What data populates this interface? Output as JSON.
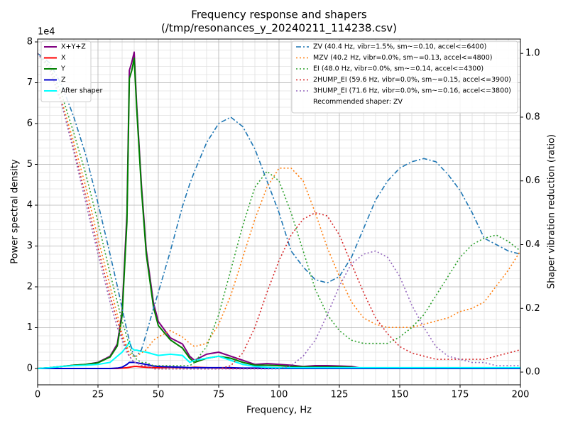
{
  "chart_data": {
    "type": "line",
    "title": "Frequency response and shapers",
    "subtitle": "(/tmp/resonances_y_20240211_114238.csv)",
    "x_label": "Frequency, Hz",
    "y_label": "Power spectral density",
    "y_offset_label": "1e4",
    "y2_label": "Shaper vibration reduction (ratio)",
    "x": [
      0,
      5,
      10,
      15,
      20,
      25,
      30,
      33,
      35,
      37,
      38,
      39,
      40,
      41,
      43,
      45,
      48,
      50,
      55,
      60,
      63,
      65,
      70,
      75,
      80,
      85,
      90,
      95,
      100,
      105,
      110,
      115,
      120,
      125,
      130,
      135,
      140,
      145,
      150,
      155,
      160,
      165,
      170,
      175,
      180,
      185,
      190,
      195,
      200
    ],
    "xlim": [
      0,
      200
    ],
    "xticks": [
      0,
      25,
      50,
      75,
      100,
      125,
      150,
      175,
      200
    ],
    "ylim": [
      -0.4,
      8.07
    ],
    "yticks": [
      0,
      1,
      2,
      3,
      4,
      5,
      6,
      7,
      8
    ],
    "y2lim": [
      -0.04,
      1.045
    ],
    "y2ticks": [
      {
        "value": 0,
        "label": "0.0"
      },
      0.2,
      0.4,
      0.6,
      0.8,
      {
        "value": 1,
        "label": "1.0"
      }
    ],
    "grid": true,
    "minor_grid": true,
    "legend": "upper left",
    "legend2": "upper right",
    "recommendation": "Recommended shaper: ZV",
    "series": [
      {
        "name": "X+Y+Z",
        "color": "#800080",
        "width": 2,
        "values": [
          0,
          0.02,
          0.05,
          0.08,
          0.1,
          0.15,
          0.3,
          0.6,
          1.4,
          3.8,
          7.3,
          7.5,
          7.75,
          6.5,
          4.5,
          2.9,
          1.6,
          1.15,
          0.75,
          0.6,
          0.3,
          0.2,
          0.35,
          0.4,
          0.3,
          0.2,
          0.1,
          0.12,
          0.1,
          0.08,
          0.05,
          0.07,
          0.07,
          0.06,
          0.05,
          0,
          0,
          0,
          0,
          0,
          0,
          0,
          0,
          0,
          0,
          0,
          0,
          0,
          0
        ]
      },
      {
        "name": "X",
        "color": "#ff0000",
        "width": 2,
        "values": [
          0,
          0,
          0,
          0,
          0,
          0,
          0,
          0,
          0.01,
          0.02,
          0.03,
          0.04,
          0.05,
          0.05,
          0.04,
          0.03,
          0.02,
          0.02,
          0.03,
          0.02,
          0.02,
          0.03,
          0.02,
          0.01,
          0,
          0,
          0,
          0,
          0,
          0,
          0,
          0,
          0,
          0,
          0,
          0,
          0,
          0,
          0,
          0,
          0,
          0,
          0,
          0,
          0,
          0,
          0,
          0,
          0
        ]
      },
      {
        "name": "Y",
        "color": "#008000",
        "width": 2,
        "values": [
          0,
          0.02,
          0.05,
          0.08,
          0.1,
          0.14,
          0.28,
          0.55,
          1.3,
          3.6,
          7.1,
          7.3,
          7.6,
          6.4,
          4.4,
          2.8,
          1.5,
          1.05,
          0.7,
          0.5,
          0.25,
          0.15,
          0.25,
          0.3,
          0.25,
          0.15,
          0.08,
          0.08,
          0.07,
          0.05,
          0.04,
          0.04,
          0.04,
          0.04,
          0.03,
          0,
          0,
          0,
          0,
          0,
          0,
          0,
          0,
          0,
          0,
          0,
          0,
          0,
          0
        ]
      },
      {
        "name": "Z",
        "color": "#0000cd",
        "width": 2,
        "values": [
          0,
          0,
          0,
          0,
          0,
          0,
          0,
          0.01,
          0.03,
          0.1,
          0.15,
          0.15,
          0.15,
          0.14,
          0.12,
          0.1,
          0.06,
          0.05,
          0.04,
          0.03,
          0.02,
          0.02,
          0.02,
          0.02,
          0.02,
          0.01,
          0.01,
          0,
          0,
          0,
          0,
          0,
          0,
          0,
          0,
          0,
          0,
          0,
          0,
          0,
          0,
          0,
          0,
          0,
          0,
          0,
          0,
          0,
          0
        ]
      },
      {
        "name": "After shaper",
        "color": "#00ffff",
        "width": 2,
        "values": [
          0,
          0.02,
          0.05,
          0.07,
          0.08,
          0.1,
          0.15,
          0.3,
          0.4,
          0.55,
          0.65,
          0.5,
          0.45,
          0.45,
          0.42,
          0.4,
          0.35,
          0.32,
          0.35,
          0.32,
          0.15,
          0.2,
          0.25,
          0.3,
          0.2,
          0.1,
          0.05,
          0.03,
          0.02,
          0.02,
          0.02,
          0.02,
          0.02,
          0.02,
          0.02,
          0.02,
          0.02,
          0.02,
          0.02,
          0.02,
          0.02,
          0.02,
          0.02,
          0.02,
          0.02,
          0.02,
          0.02,
          0.02,
          0.02
        ]
      },
      {
        "name": "ZV (40.4 Hz, vibr=1.5%, sm~=0.10, accel<=6400)",
        "axis": "y2",
        "color": "#1f77b4",
        "dash": "dashdot",
        "width": 1.6,
        "values": [
          1.0,
          0.97,
          0.9,
          0.8,
          0.68,
          0.53,
          0.37,
          0.27,
          0.2,
          0.13,
          0.1,
          0.07,
          0.05,
          0.05,
          0.07,
          0.12,
          0.2,
          0.25,
          0.38,
          0.52,
          0.59,
          0.63,
          0.72,
          0.78,
          0.8,
          0.77,
          0.7,
          0.6,
          0.5,
          0.38,
          0.33,
          0.29,
          0.28,
          0.3,
          0.36,
          0.45,
          0.54,
          0.6,
          0.64,
          0.66,
          0.67,
          0.66,
          0.62,
          0.57,
          0.5,
          0.42,
          0.4,
          0.38,
          0.37
        ]
      },
      {
        "name": "MZV (40.2 Hz, vibr=0.0%, sm~=0.13, accel<=4800)",
        "axis": "y2",
        "color": "#ff7f0e",
        "dash": "dotted",
        "width": 1.6,
        "values": [
          1.0,
          0.95,
          0.85,
          0.72,
          0.58,
          0.42,
          0.27,
          0.18,
          0.12,
          0.08,
          0.06,
          0.05,
          0.05,
          0.05,
          0.06,
          0.07,
          0.1,
          0.11,
          0.13,
          0.11,
          0.09,
          0.08,
          0.09,
          0.15,
          0.24,
          0.36,
          0.48,
          0.58,
          0.64,
          0.64,
          0.6,
          0.5,
          0.39,
          0.3,
          0.22,
          0.17,
          0.15,
          0.14,
          0.14,
          0.14,
          0.15,
          0.16,
          0.17,
          0.19,
          0.2,
          0.22,
          0.27,
          0.32,
          0.38
        ]
      },
      {
        "name": "EI (48.0 Hz, vibr=0.0%, sm~=0.14, accel<=4300)",
        "axis": "y2",
        "color": "#2ca02c",
        "dash": "dotted",
        "width": 1.6,
        "values": [
          1.0,
          0.96,
          0.87,
          0.75,
          0.62,
          0.47,
          0.31,
          0.22,
          0.16,
          0.11,
          0.08,
          0.06,
          0.05,
          0.04,
          0.03,
          0.03,
          0.02,
          0.02,
          0.02,
          0.02,
          0.02,
          0.03,
          0.08,
          0.18,
          0.32,
          0.46,
          0.58,
          0.63,
          0.6,
          0.5,
          0.38,
          0.26,
          0.18,
          0.13,
          0.1,
          0.09,
          0.09,
          0.09,
          0.11,
          0.14,
          0.18,
          0.24,
          0.3,
          0.36,
          0.4,
          0.42,
          0.43,
          0.41,
          0.38
        ]
      },
      {
        "name": "2HUMP_EI (59.6 Hz, vibr=0.0%, sm~=0.15, accel<=3900)",
        "axis": "y2",
        "color": "#d62728",
        "dash": "dotted",
        "width": 1.6,
        "values": [
          1.0,
          0.95,
          0.84,
          0.7,
          0.55,
          0.39,
          0.24,
          0.16,
          0.11,
          0.07,
          0.05,
          0.04,
          0.03,
          0.03,
          0.02,
          0.02,
          0.01,
          0.01,
          0.01,
          0.01,
          0.01,
          0.01,
          0.01,
          0.01,
          0.02,
          0.06,
          0.14,
          0.25,
          0.35,
          0.43,
          0.48,
          0.5,
          0.49,
          0.43,
          0.34,
          0.25,
          0.17,
          0.12,
          0.08,
          0.06,
          0.05,
          0.04,
          0.04,
          0.04,
          0.04,
          0.04,
          0.05,
          0.06,
          0.07
        ]
      },
      {
        "name": "3HUMP_EI (71.6 Hz, vibr=0.0%, sm~=0.16, accel<=3800)",
        "axis": "y2",
        "color": "#9467bd",
        "dash": "dotted",
        "width": 1.6,
        "values": [
          1.0,
          0.95,
          0.84,
          0.69,
          0.53,
          0.37,
          0.22,
          0.14,
          0.1,
          0.06,
          0.05,
          0.04,
          0.03,
          0.03,
          0.02,
          0.02,
          0.01,
          0.01,
          0.01,
          0.01,
          0.01,
          0.01,
          0.01,
          0.01,
          0.01,
          0.01,
          0.01,
          0.01,
          0.01,
          0.02,
          0.05,
          0.1,
          0.18,
          0.27,
          0.34,
          0.37,
          0.38,
          0.36,
          0.3,
          0.21,
          0.14,
          0.08,
          0.05,
          0.04,
          0.03,
          0.03,
          0.02,
          0.02,
          0.02
        ]
      }
    ]
  }
}
